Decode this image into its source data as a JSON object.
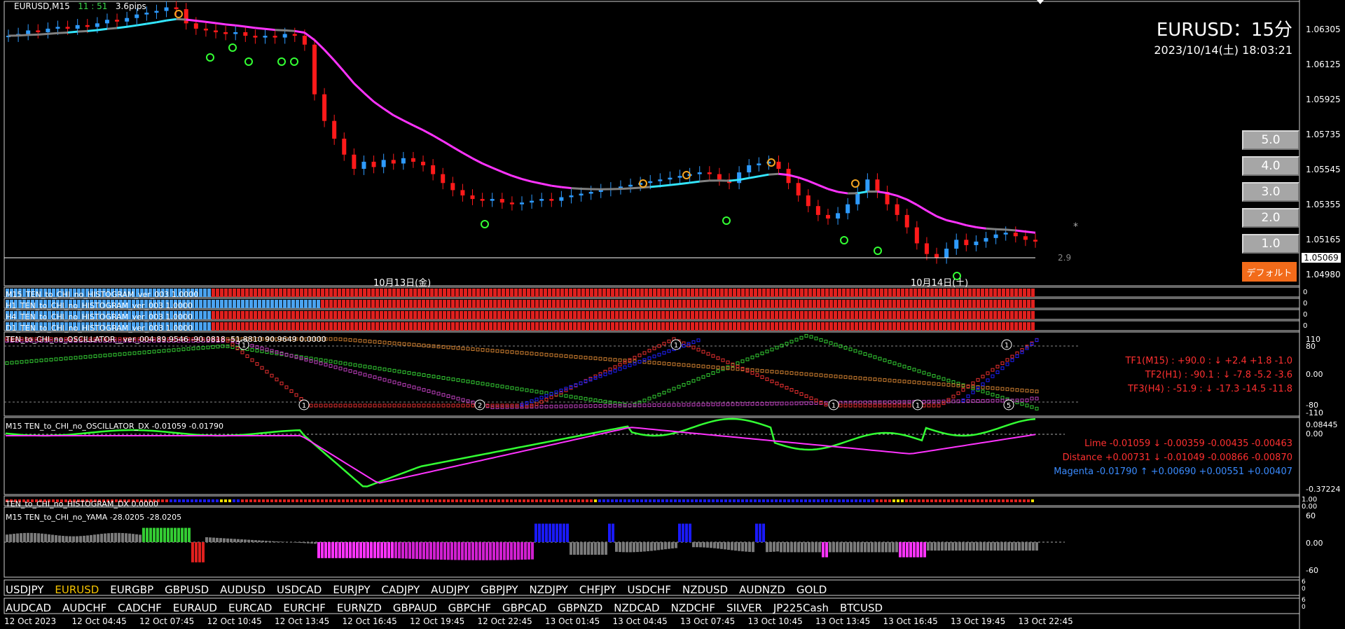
{
  "header": {
    "symbol": "EURUSD,M15",
    "timer": "11 : 51",
    "spread": "3.6pips"
  },
  "title": {
    "pair_tf": "EURUSD：15分",
    "datetime": "2023/10/14(土) 18:03:21"
  },
  "lot_buttons": [
    "5.0",
    "4.0",
    "3.0",
    "2.0",
    "1.0"
  ],
  "default_button": "デフォルト",
  "price_axis": [
    "1.06305",
    "1.06125",
    "1.05925",
    "1.05735",
    "1.05545",
    "1.05355",
    "1.05165",
    "1.04980"
  ],
  "current_price": "1.05069",
  "price_marker_label": "2.9",
  "day_labels": [
    "10月13日(金)",
    "10月14日(土)"
  ],
  "histograms": [
    {
      "label": "M15_TEN_to_CHI_no_HISTOGRAM_ver_003 1.0000",
      "axis": "0"
    },
    {
      "label": "H1_TEN_to_CHI_no_HISTOGRAM_ver_003 1.0000",
      "axis": "0"
    },
    {
      "label": "H4_TEN_to_CHI_no_HISTOGRAM_ver_003 1.0000",
      "axis": "0"
    },
    {
      "label": "D1_TEN_to_CHI_no_HISTOGRAM_ver_003 1.0000",
      "axis": "0"
    }
  ],
  "oscillator": {
    "label": "TEN_to_CHI_no_OSCILLATOR__ver_004 89.9546 -90.0818 -51.8810 90.9649 0.0000",
    "axis": [
      "110",
      "80",
      "0.00",
      "-80",
      "-110"
    ],
    "tf_lines": [
      "TF1(M15) : +90.0 : ↓ +2.4 +1.8 -1.0",
      "TF2(H1) : -90.1 : ↓ -7.8 -5.2 -3.6",
      "TF3(H4) : -51.9 : ↓ -17.3 -14.5 -11.8"
    ],
    "badges": [
      "1",
      "1",
      "2",
      "1",
      "1",
      "1",
      "5",
      "1"
    ]
  },
  "dx": {
    "label": "M15 TEN_to_CHI_no_OSCILLATOR_DX -0.01059 -0.01790",
    "axis": [
      "0.08445",
      "0.00",
      "-0.37224"
    ],
    "info": [
      "Lime -0.01059 ↓ -0.00359 -0.00435 -0.00463",
      "Distance +0.00731 ↓ -0.01049 -0.00866 -0.00870",
      "Magenta -0.01790 ↑ +0.00690 +0.00551 +0.00407"
    ]
  },
  "hist_dx": {
    "label": "TEN_to_CHI_no_HISTOGRAM_DX 0.0000",
    "axis": [
      "1.00",
      "0.00"
    ]
  },
  "yama": {
    "label": "M15  TEN_to_CHI_no_YAMA -28.0205 -28.0205",
    "axis": [
      "60",
      "0.00",
      "-60"
    ]
  },
  "symbols_row1": [
    "USDJPY",
    "EURUSD",
    "EURGBP",
    "GBPUSD",
    "AUDUSD",
    "USDCAD",
    "EURJPY",
    "CADJPY",
    "AUDJPY",
    "GBPJPY",
    "NZDJPY",
    "CHFJPY",
    "USDCHF",
    "NZDUSD",
    "AUDNZD",
    "GOLD"
  ],
  "symbols_row1_active": "EURUSD",
  "symbols_row2": [
    "AUDCAD",
    "AUDCHF",
    "CADCHF",
    "EURAUD",
    "EURCAD",
    "EURCHF",
    "EURNZD",
    "GBPAUD",
    "GBPCHF",
    "GBPCAD",
    "GBPNZD",
    "NZDCAD",
    "NZDCHF",
    "SILVER",
    "JP225Cash",
    "BTCUSD"
  ],
  "symrow_axis": [
    "6",
    "0",
    "6",
    "0"
  ],
  "time_axis": [
    "12 Oct 2023",
    "12 Oct 04:45",
    "12 Oct 07:45",
    "12 Oct 10:45",
    "12 Oct 13:45",
    "12 Oct 16:45",
    "12 Oct 19:45",
    "12 Oct 22:45",
    "13 Oct 01:45",
    "13 Oct 04:45",
    "13 Oct 07:45",
    "13 Oct 10:45",
    "13 Oct 13:45",
    "13 Oct 16:45",
    "13 Oct 19:45",
    "13 Oct 22:45"
  ],
  "colors": {
    "bull": "#2e9bff",
    "bear": "#ff1a1a",
    "ma_cyan": "#33e6ff",
    "ma_magenta": "#ff33ff",
    "lime": "#33ff33",
    "orange": "#f5a623",
    "grey": "#808080"
  },
  "chart_data": {
    "type": "candlestick",
    "ylim": [
      1.0488,
      1.064
    ],
    "close": [
      1.0623,
      1.0624,
      1.0626,
      1.0625,
      1.0627,
      1.0628,
      1.0627,
      1.0629,
      1.0628,
      1.063,
      1.0632,
      1.0631,
      1.0633,
      1.0635,
      1.0636,
      1.0637,
      1.0639,
      1.0638,
      1.063,
      1.0627,
      1.0626,
      1.0625,
      1.0624,
      1.0625,
      1.0623,
      1.0622,
      1.0623,
      1.0622,
      1.0624,
      1.0623,
      1.0618,
      1.059,
      1.0575,
      1.0565,
      1.0556,
      1.0548,
      1.0552,
      1.0549,
      1.0553,
      1.0551,
      1.0554,
      1.0552,
      1.055,
      1.0545,
      1.054,
      1.0536,
      1.0533,
      1.0531,
      1.053,
      1.0531,
      1.0529,
      1.0528,
      1.0529,
      1.053,
      1.0531,
      1.053,
      1.0532,
      1.0533,
      1.0534,
      1.0535,
      1.0536,
      1.0537,
      1.0538,
      1.0539,
      1.054,
      1.0541,
      1.0542,
      1.0543,
      1.0544,
      1.0545,
      1.0546,
      1.0545,
      1.0542,
      1.054,
      1.0546,
      1.055,
      1.0551,
      1.0552,
      1.0548,
      1.054,
      1.0533,
      1.0527,
      1.0522,
      1.052,
      1.0523,
      1.0528,
      1.0535,
      1.0542,
      1.0535,
      1.0528,
      1.0522,
      1.0515,
      1.0506,
      1.05,
      1.0498,
      1.0503,
      1.0508,
      1.0505,
      1.0507,
      1.0509,
      1.0511,
      1.0512,
      1.051,
      1.0508,
      1.0507
    ]
  }
}
